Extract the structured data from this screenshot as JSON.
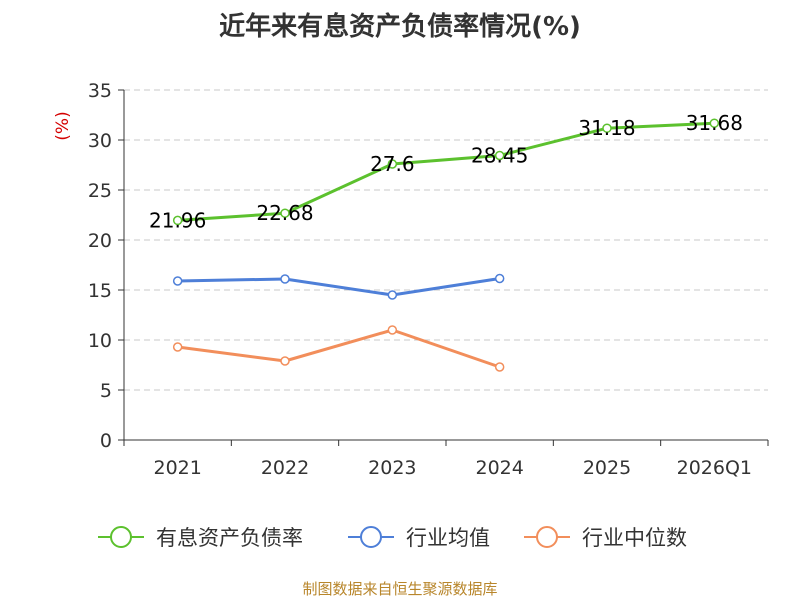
{
  "chart_data": {
    "type": "line",
    "title": "近年来有息资产负债率情况(%)",
    "ylabel": "(%)",
    "ylim": [
      0,
      35
    ],
    "yticks": [
      0,
      5,
      10,
      15,
      20,
      25,
      30,
      35
    ],
    "categories": [
      "2021",
      "2022",
      "2023",
      "2024",
      "2025",
      "2026Q1"
    ],
    "grid": true,
    "legend_position": "bottom",
    "series": [
      {
        "name": "有息资产负债率",
        "color": "#5cc12e",
        "values": [
          21.96,
          22.68,
          27.6,
          28.45,
          31.18,
          31.68
        ],
        "show_labels": true
      },
      {
        "name": "行业均值",
        "color": "#4e7fd8",
        "values": [
          15.9,
          16.1,
          14.5,
          16.15,
          null,
          null
        ],
        "show_labels": false
      },
      {
        "name": "行业中位数",
        "color": "#f28e5b",
        "values": [
          9.3,
          7.9,
          11.0,
          7.3,
          null,
          null
        ],
        "show_labels": false
      }
    ]
  },
  "source": "制图数据来自恒生聚源数据库"
}
